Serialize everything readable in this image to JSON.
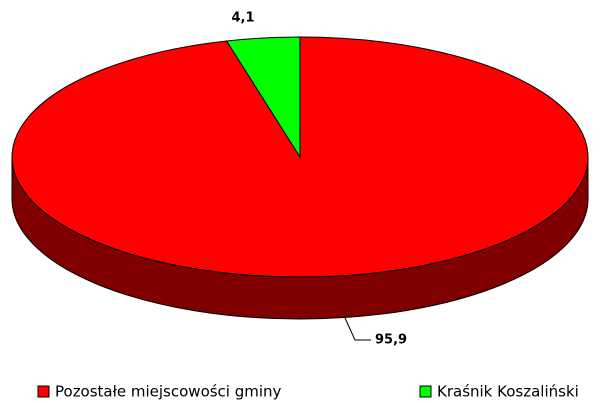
{
  "chart_data": {
    "type": "pie",
    "categories": [
      "Pozostałe miejscowości gminy",
      "Kraśnik Koszaliński"
    ],
    "values": [
      95.9,
      4.1
    ],
    "value_labels": [
      "95,9",
      "4,1"
    ],
    "colors": [
      "#ff0000",
      "#00ff00"
    ]
  }
}
